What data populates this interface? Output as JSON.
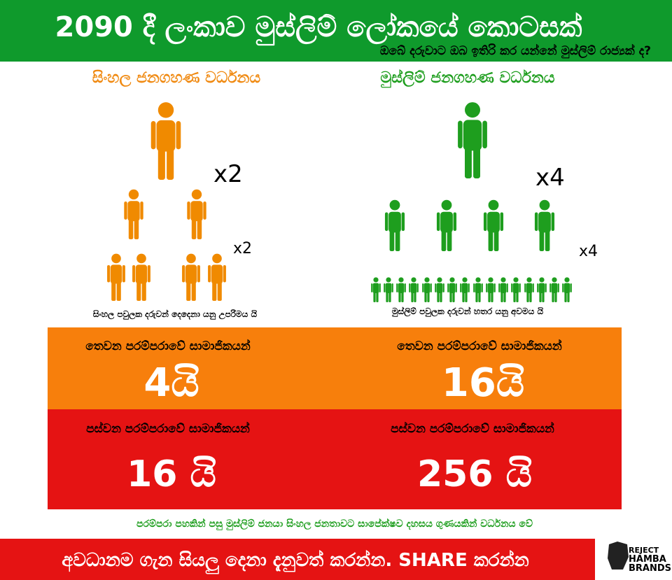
{
  "header": {
    "title": "2090 දී ලංකාව මුස්ලිම් ලෝකයේ කොටසක්",
    "subtitle": "ඔබේ දරුවාට ඔබ ඉතිරි කර යන්නේ මුස්ලිම් රාජ්‍යක් ද?"
  },
  "left": {
    "heading": "සිංහල ජනගහණ වර්ධනය",
    "multiplier_top": "x2",
    "multiplier_bottom": "x2",
    "caption": "සිංහල පවුලක දරුවන් දෙදෙනා යනු උපරිමය යි"
  },
  "right": {
    "heading": "මුස්ලිම් ජනගහණ වර්ධනය",
    "multiplier_top": "x4",
    "multiplier_bottom": "x4",
    "caption": "මුස්ලිම් පවුලක දරුවන් හතර යනු අවමය යි"
  },
  "third_generation": {
    "label_left": "තෙවන පරම්පරාවේ සාමාජිකයන්",
    "value_left": "4යි",
    "label_right": "තෙවන පරම්පරාවේ සාමාජිකයන්",
    "value_right": "16යි"
  },
  "fifth_generation": {
    "label_left": "පස්වන පරම්පරාවේ සාමාජිකයන්",
    "value_left": "16 යි",
    "label_right": "පස්වන පරම්පරාවේ සාමාජිකයන්",
    "value_right": "256 යි"
  },
  "conclusion": "පරම්පරා පහකින් පසු මුස්ලිම් ජනයා සිංහල ජනතාවට සාපේක්ෂව දහසය ගුණයකින් වර්ධනය වේ",
  "footer": {
    "call_to_action": "අවධානම ගැන සියලු දෙනා දැනුවත් කරන්න. SHARE කරන්න",
    "logo_line1": "REJECT",
    "logo_line2": "HAMBA",
    "logo_line3": "BRANDS"
  }
}
